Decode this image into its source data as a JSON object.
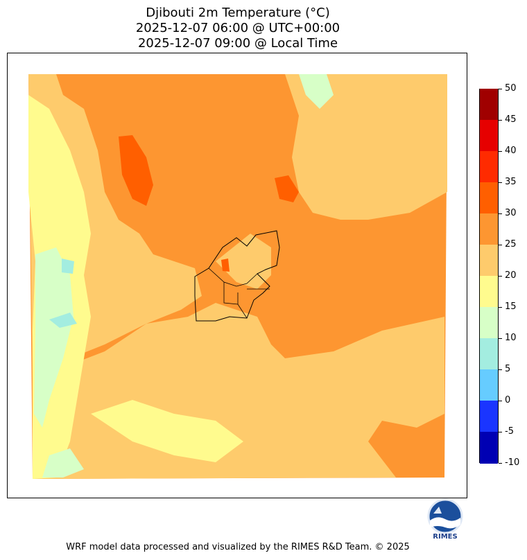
{
  "title": {
    "line1": "Djibouti 2m Temperature (°C)",
    "line2": "2025-12-07 06:00 @ UTC+00:00",
    "line3": "2025-12-07 09:00 @ Local Time"
  },
  "colorbar": {
    "levels": [
      {
        "label": "50",
        "color": "#a00000"
      },
      {
        "label": "45",
        "color": "#e60000"
      },
      {
        "label": "40",
        "color": "#ff2b00"
      },
      {
        "label": "35",
        "color": "#ff5f00"
      },
      {
        "label": "30",
        "color": "#fd9631"
      },
      {
        "label": "25",
        "color": "#fecb6c"
      },
      {
        "label": "20",
        "color": "#fffb8e"
      },
      {
        "label": "15",
        "color": "#d7ffc7"
      },
      {
        "label": "10",
        "color": "#a3ede0"
      },
      {
        "label": "5",
        "color": "#66ccff"
      },
      {
        "label": "0",
        "color": "#1a35ff"
      },
      {
        "label": "-5",
        "color": "#0000b3"
      },
      {
        "label": "-10",
        "color": ""
      }
    ]
  },
  "logo": {
    "text": "RIMES"
  },
  "footer": "WRF model data processed and visualized by the RIMES R&D Team. © 2025"
}
